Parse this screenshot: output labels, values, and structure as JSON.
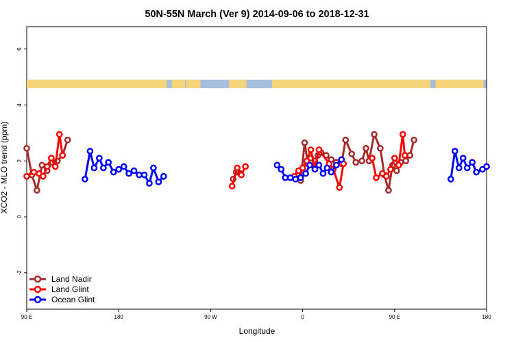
{
  "chart_data": {
    "type": "line",
    "title": "50N-55N March (Ver 9)   2014-09-06 to 2018-12-31",
    "xlabel": "Longitude",
    "ylabel": "XCO2 - MLO trend (ppm)",
    "xlim": [
      -90,
      360
    ],
    "ylim": [
      -3.3,
      6.8
    ],
    "x_ticks": [
      {
        "value": -90,
        "label": "90 E"
      },
      {
        "value": 0,
        "label": "180"
      },
      {
        "value": 90,
        "label": "90 W"
      },
      {
        "value": 180,
        "label": "0"
      },
      {
        "value": 270,
        "label": "90 E"
      },
      {
        "value": 360,
        "label": "180"
      }
    ],
    "y_ticks": [
      -2,
      0,
      2,
      4,
      6
    ],
    "land_mask_band": {
      "y_range": [
        4.6,
        4.9
      ],
      "land_color": "#F5D47A",
      "ocean_color": "#A6BDDB"
    },
    "legend_position": "bottom-left",
    "series": [
      {
        "name": "Land Nadir",
        "color": "#A52A2A",
        "segments": [
          [
            [
              -90,
              2.45
            ],
            [
              -85,
              1.5
            ],
            [
              -80,
              0.95
            ],
            [
              -75,
              1.85
            ],
            [
              -70,
              1.65
            ],
            [
              -65,
              1.95
            ],
            [
              -60,
              2.0
            ],
            [
              -55,
              2.2
            ],
            [
              -50,
              2.75
            ]
          ],
          [
            [
              112,
              1.35
            ],
            [
              115,
              1.6
            ],
            [
              119,
              1.55
            ]
          ],
          [
            [
              175,
              1.5
            ],
            [
              178,
              1.3
            ],
            [
              182,
              2.65
            ],
            [
              185,
              1.9
            ],
            [
              188,
              2.1
            ],
            [
              192,
              2.0
            ],
            [
              195,
              2.2
            ],
            [
              198,
              2.3
            ],
            [
              203,
              2.2
            ],
            [
              208,
              2.05
            ],
            [
              213,
              1.95
            ],
            [
              218,
              1.9
            ],
            [
              222,
              2.75
            ],
            [
              228,
              2.25
            ],
            [
              232,
              1.95
            ],
            [
              238,
              2.0
            ],
            [
              242,
              2.45
            ],
            [
              245,
              2.0
            ],
            [
              250,
              2.95
            ],
            [
              256,
              2.45
            ],
            [
              260,
              1.5
            ],
            [
              264,
              0.95
            ],
            [
              268,
              1.85
            ],
            [
              272,
              1.65
            ],
            [
              276,
              1.95
            ],
            [
              281,
              2.0
            ],
            [
              285,
              2.2
            ],
            [
              289,
              2.75
            ]
          ]
        ]
      },
      {
        "name": "Land Glint",
        "color": "#FF0000",
        "segments": [
          [
            [
              -90,
              1.45
            ],
            [
              -83,
              1.6
            ],
            [
              -78,
              1.55
            ],
            [
              -74,
              1.45
            ],
            [
              -70,
              1.8
            ],
            [
              -66,
              2.1
            ],
            [
              -62,
              1.8
            ],
            [
              -58,
              2.95
            ],
            [
              -55,
              2.2
            ]
          ],
          [
            [
              111,
              1.1
            ],
            [
              116,
              1.75
            ],
            [
              120,
              1.5
            ],
            [
              124,
              1.8
            ]
          ],
          [
            [
              172,
              1.45
            ],
            [
              176,
              1.65
            ],
            [
              180,
              1.75
            ],
            [
              184,
              2.0
            ],
            [
              188,
              2.4
            ],
            [
              192,
              1.75
            ],
            [
              196,
              2.4
            ],
            [
              206,
              1.9
            ],
            [
              210,
              1.7
            ],
            [
              216,
              1.05
            ],
            [
              220,
              1.9
            ]
          ],
          [
            [
              248,
              2.1
            ],
            [
              252,
              1.4
            ],
            [
              258,
              1.55
            ],
            [
              262,
              1.45
            ],
            [
              266,
              1.7
            ],
            [
              270,
              2.1
            ],
            [
              274,
              1.85
            ],
            [
              278,
              2.95
            ],
            [
              280,
              2.2
            ]
          ]
        ]
      },
      {
        "name": "Ocean Glint",
        "color": "#0000FF",
        "segments": [
          [
            [
              -33,
              1.35
            ],
            [
              -28,
              2.35
            ],
            [
              -24,
              1.75
            ],
            [
              -19,
              2.1
            ],
            [
              -15,
              1.75
            ],
            [
              -10,
              1.95
            ],
            [
              -5,
              1.6
            ],
            [
              0,
              1.7
            ],
            [
              5,
              1.8
            ],
            [
              10,
              1.55
            ],
            [
              15,
              1.65
            ],
            [
              20,
              1.5
            ],
            [
              25,
              1.5
            ],
            [
              30,
              1.2
            ],
            [
              34,
              1.75
            ],
            [
              39,
              1.25
            ],
            [
              44,
              1.45
            ]
          ],
          [
            [
              155,
              1.85
            ],
            [
              159,
              1.7
            ],
            [
              163,
              1.4
            ],
            [
              168,
              1.4
            ],
            [
              173,
              1.35
            ],
            [
              178,
              1.4
            ],
            [
              183,
              1.55
            ],
            [
              187,
              1.85
            ],
            [
              192,
              1.7
            ],
            [
              196,
              1.85
            ],
            [
              200,
              1.55
            ],
            [
              204,
              1.75
            ],
            [
              208,
              1.6
            ],
            [
              213,
              1.85
            ],
            [
              218,
              2.05
            ]
          ],
          [
            [
              325,
              1.35
            ],
            [
              329,
              2.35
            ],
            [
              333,
              1.75
            ],
            [
              337,
              2.1
            ],
            [
              341,
              1.75
            ],
            [
              346,
              1.95
            ],
            [
              350,
              1.6
            ],
            [
              356,
              1.7
            ],
            [
              360,
              1.8
            ]
          ]
        ]
      }
    ]
  }
}
